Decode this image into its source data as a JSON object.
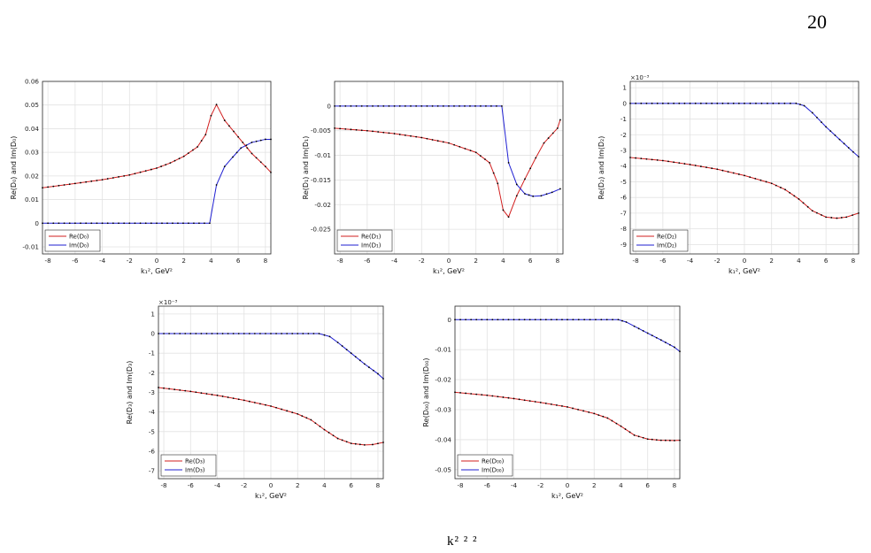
{
  "page_number": "20",
  "caption_fragment": "k²   ²  ²",
  "colors": {
    "re": "#d21f1f",
    "im": "#1f1fd2",
    "marker": "#000000",
    "grid": "#e2e2e2"
  },
  "chart_data": [
    {
      "type": "line",
      "id": "D0",
      "xlabel": "k₁², GeV²",
      "ylabel": "Re(D₀) and Im(D₀)",
      "xlim": [
        -8.4,
        8.4
      ],
      "ylim": [
        -0.013,
        0.06
      ],
      "xticks": [
        -8,
        -6,
        -4,
        -2,
        0,
        2,
        4,
        6,
        8
      ],
      "yticks": [
        -0.01,
        0,
        0.01,
        0.02,
        0.03,
        0.04,
        0.05,
        0.06
      ],
      "ytick_labels": [
        "-0.01",
        "0",
        "0.01",
        "0.02",
        "0.03",
        "0.04",
        "0.05",
        "0.06"
      ],
      "exponent_label": "",
      "legend_position": "bottom-left",
      "series": [
        {
          "name": "Re(D₀)",
          "color": "re",
          "x": [
            -8.4,
            -6,
            -4,
            -2,
            0,
            1,
            2,
            3,
            3.6,
            4,
            4.4,
            5,
            6,
            7,
            8,
            8.4
          ],
          "y": [
            0.015,
            0.0168,
            0.0184,
            0.0204,
            0.0233,
            0.0255,
            0.0283,
            0.0323,
            0.0375,
            0.0455,
            0.0502,
            0.0435,
            0.0365,
            0.0295,
            0.024,
            0.0215
          ]
        },
        {
          "name": "Im(D₀)",
          "color": "im",
          "x": [
            -8.4,
            -4,
            0,
            3.9,
            4.4,
            5,
            5.6,
            6.2,
            7,
            8,
            8.4
          ],
          "y": [
            0,
            0,
            0,
            0,
            0.0162,
            0.024,
            0.028,
            0.0318,
            0.0342,
            0.0355,
            0.0355
          ]
        }
      ]
    },
    {
      "type": "line",
      "id": "D1",
      "xlabel": "k₁², GeV²",
      "ylabel": "Re(D₁) and Im(D₁)",
      "xlim": [
        -8.4,
        8.4
      ],
      "ylim": [
        -0.03,
        0.005
      ],
      "xticks": [
        -8,
        -6,
        -4,
        -2,
        0,
        2,
        4,
        6,
        8
      ],
      "yticks": [
        -0.025,
        -0.02,
        -0.015,
        -0.01,
        -0.005,
        0
      ],
      "ytick_labels": [
        "-0.025",
        "-0.02",
        "-0.015",
        "-0.01",
        "-0.005",
        "0"
      ],
      "exponent_label": "",
      "legend_position": "bottom-left",
      "series": [
        {
          "name": "Re(D₁)",
          "color": "re",
          "x": [
            -8.4,
            -6,
            -4,
            -2,
            0,
            2,
            3,
            3.6,
            4,
            4.4,
            5,
            5.6,
            6.4,
            7,
            8,
            8.2
          ],
          "y": [
            -0.0045,
            -0.005,
            -0.0056,
            -0.0064,
            -0.0075,
            -0.0094,
            -0.0115,
            -0.0157,
            -0.0211,
            -0.0225,
            -0.0182,
            -0.0148,
            -0.0105,
            -0.0075,
            -0.0045,
            -0.0028
          ]
        },
        {
          "name": "Im(D₁)",
          "color": "im",
          "x": [
            -8.4,
            -4,
            0,
            3.9,
            4.4,
            5,
            5.6,
            6.2,
            6.8,
            7.6,
            8.2
          ],
          "y": [
            0,
            0,
            0,
            0,
            -0.0115,
            -0.0159,
            -0.0178,
            -0.0183,
            -0.0182,
            -0.0175,
            -0.0168
          ]
        }
      ]
    },
    {
      "type": "line",
      "id": "D2",
      "xlabel": "k₁², GeV²",
      "ylabel": "Re(D₂) and Im(D₂)",
      "xlim": [
        -8.4,
        8.4
      ],
      "ylim": [
        -9.6,
        1.4
      ],
      "xticks": [
        -8,
        -6,
        -4,
        -2,
        0,
        2,
        4,
        6,
        8
      ],
      "yticks": [
        -9,
        -8,
        -7,
        -6,
        -5,
        -4,
        -3,
        -2,
        -1,
        0,
        1
      ],
      "ytick_labels": [
        "-9",
        "-8",
        "-7",
        "-6",
        "-5",
        "-4",
        "-3",
        "-2",
        "-1",
        "0",
        "1"
      ],
      "exponent_label": "×10⁻³",
      "legend_position": "bottom-left",
      "series": [
        {
          "name": "Re(D₂)",
          "color": "re",
          "x": [
            -8.4,
            -6,
            -4,
            -2,
            0,
            2,
            3,
            4,
            5,
            6,
            6.8,
            7.5,
            8.4
          ],
          "y": [
            -3.45,
            -3.65,
            -3.9,
            -4.2,
            -4.6,
            -5.1,
            -5.5,
            -6.1,
            -6.85,
            -7.25,
            -7.32,
            -7.25,
            -7.0
          ]
        },
        {
          "name": "Im(D₂)",
          "color": "im",
          "x": [
            -8.4,
            -4,
            0,
            3.8,
            4.4,
            5,
            6,
            7,
            8,
            8.4
          ],
          "y": [
            0,
            0,
            0,
            0,
            -0.15,
            -0.6,
            -1.5,
            -2.3,
            -3.1,
            -3.4
          ]
        }
      ]
    },
    {
      "type": "line",
      "id": "D3",
      "xlabel": "k₁², GeV²",
      "ylabel": "Re(D₃) and Im(D₃)",
      "xlim": [
        -8.4,
        8.4
      ],
      "ylim": [
        -7.4,
        1.4
      ],
      "xticks": [
        -8,
        -6,
        -4,
        -2,
        0,
        2,
        4,
        6,
        8
      ],
      "yticks": [
        -7,
        -6,
        -5,
        -4,
        -3,
        -2,
        -1,
        0,
        1
      ],
      "ytick_labels": [
        "-7",
        "-6",
        "-5",
        "-4",
        "-3",
        "-2",
        "-1",
        "0",
        "1"
      ],
      "exponent_label": "×10⁻³",
      "legend_position": "bottom-left",
      "series": [
        {
          "name": "Re(D₃)",
          "color": "re",
          "x": [
            -8.4,
            -6,
            -4,
            -2,
            0,
            2,
            3,
            4,
            5,
            6,
            7,
            7.6,
            8.4
          ],
          "y": [
            -2.75,
            -2.95,
            -3.15,
            -3.4,
            -3.7,
            -4.1,
            -4.4,
            -4.9,
            -5.35,
            -5.6,
            -5.68,
            -5.66,
            -5.55
          ]
        },
        {
          "name": "Im(D₃)",
          "color": "im",
          "x": [
            -8.4,
            -4,
            0,
            3.6,
            4.4,
            5,
            6,
            7,
            8,
            8.4
          ],
          "y": [
            0,
            0,
            0,
            0,
            -0.15,
            -0.45,
            -1.0,
            -1.55,
            -2.05,
            -2.3
          ]
        }
      ]
    },
    {
      "type": "line",
      "id": "D00",
      "xlabel": "k₁², GeV²",
      "ylabel": "Re(D₀₀) and Im(D₀₀)",
      "xlim": [
        -8.4,
        8.4
      ],
      "ylim": [
        -0.053,
        0.0045
      ],
      "xticks": [
        -8,
        -6,
        -4,
        -2,
        0,
        2,
        4,
        6,
        8
      ],
      "yticks": [
        -0.05,
        -0.04,
        -0.03,
        -0.02,
        -0.01,
        0
      ],
      "ytick_labels": [
        "-0.05",
        "-0.04",
        "-0.03",
        "-0.02",
        "-0.01",
        "0"
      ],
      "exponent_label": "",
      "legend_position": "bottom-left",
      "series": [
        {
          "name": "Re(D₀₀)",
          "color": "re",
          "x": [
            -8.4,
            -6,
            -4,
            -2,
            0,
            2,
            3,
            4,
            5,
            6,
            7,
            8,
            8.4
          ],
          "y": [
            -0.0242,
            -0.0252,
            -0.0263,
            -0.0276,
            -0.0291,
            -0.0313,
            -0.0328,
            -0.0355,
            -0.0385,
            -0.0398,
            -0.0402,
            -0.0403,
            -0.0402
          ]
        },
        {
          "name": "Im(D₀₀)",
          "color": "im",
          "x": [
            -8.4,
            -4,
            0,
            3.8,
            4.4,
            5,
            6,
            7,
            8,
            8.4
          ],
          "y": [
            0,
            0,
            0,
            0,
            -0.0008,
            -0.0022,
            -0.0045,
            -0.0068,
            -0.0092,
            -0.0106
          ]
        }
      ]
    }
  ]
}
